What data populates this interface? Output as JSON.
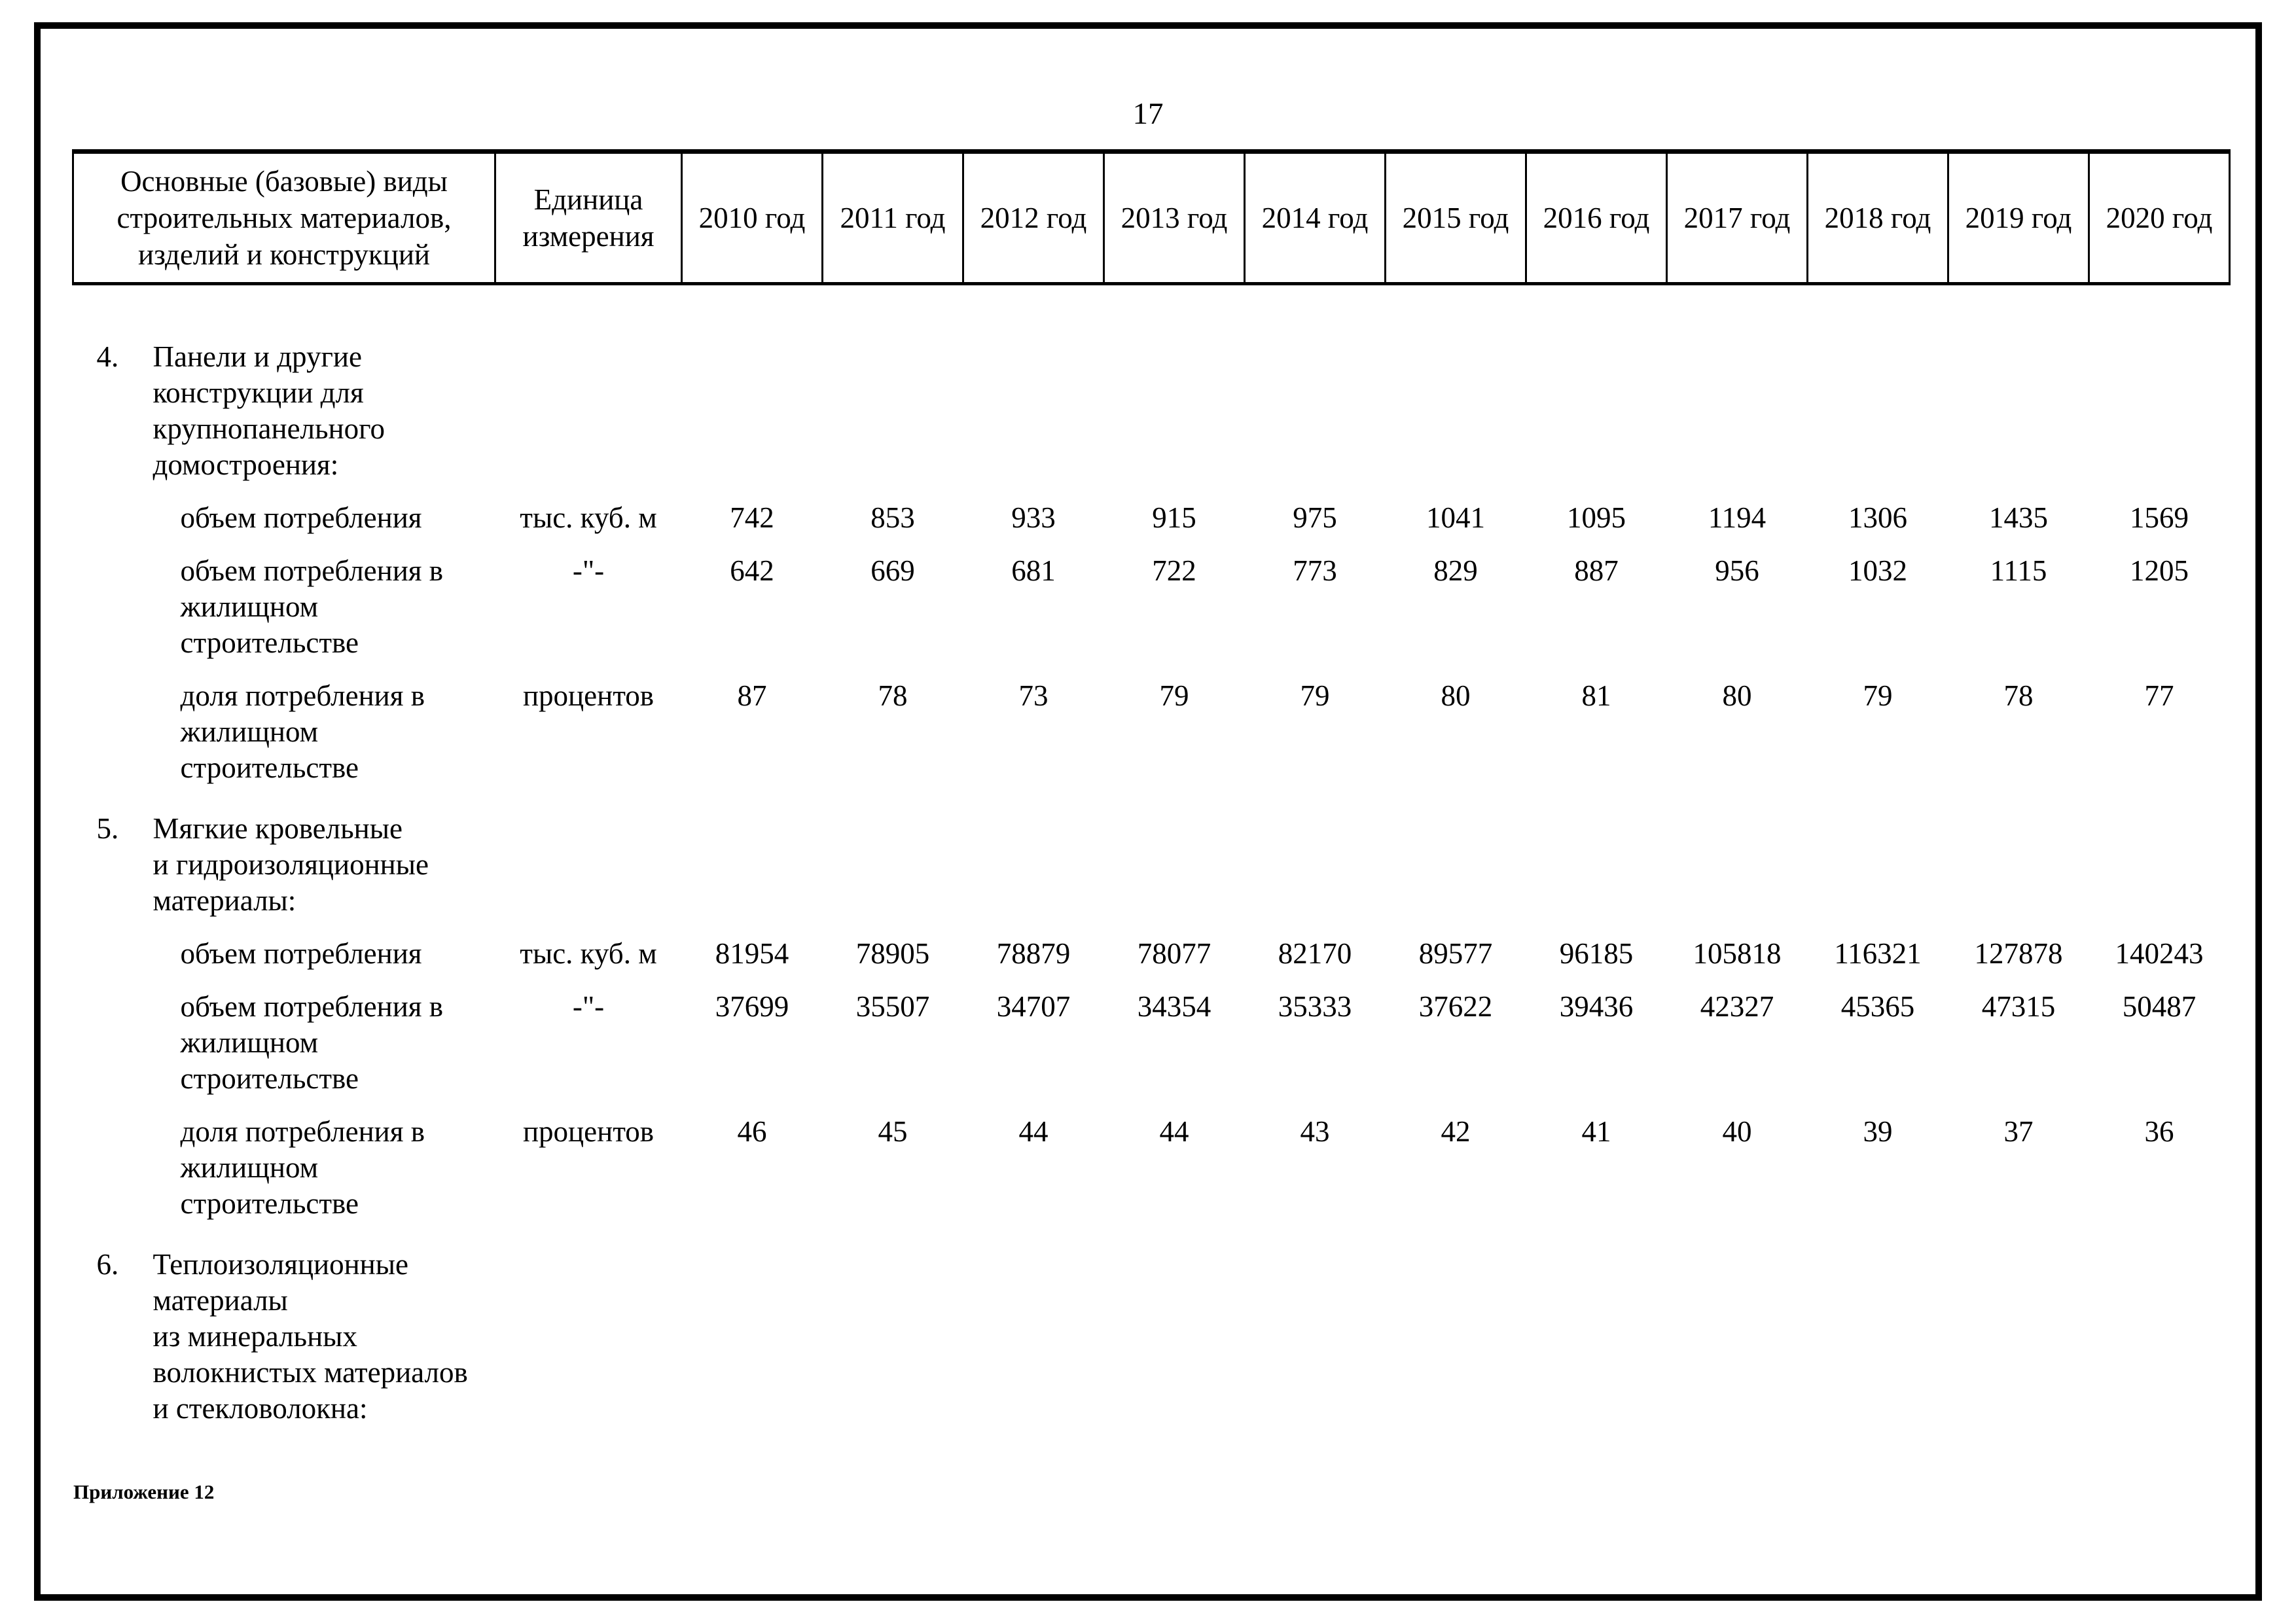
{
  "page": {
    "number": "17"
  },
  "table": {
    "header": {
      "material": "Основные (базовые) виды\nстроительных материалов,\nизделий и конструкций",
      "unit": "Единица\nизмерения"
    },
    "years": [
      "2010 год",
      "2011 год",
      "2012 год",
      "2013 год",
      "2014 год",
      "2015 год",
      "2016 год",
      "2017 год",
      "2018 год",
      "2019 год",
      "2020 год"
    ],
    "rows": [
      {
        "type": "group",
        "num": "4.",
        "label": "Панели и другие\nконструкции для\nкрупнопанельного\nдомостроения:"
      },
      {
        "type": "data",
        "label": "объем потребления",
        "unit": "тыс. куб. м",
        "values": [
          742,
          853,
          933,
          915,
          975,
          1041,
          1095,
          1194,
          1306,
          1435,
          1569
        ]
      },
      {
        "type": "data",
        "label": "объем потребления в\nжилищном\nстроительстве",
        "unit": "-\"-",
        "values": [
          642,
          669,
          681,
          722,
          773,
          829,
          887,
          956,
          1032,
          1115,
          1205
        ]
      },
      {
        "type": "data",
        "label": "доля потребления в\nжилищном\nстроительстве",
        "unit": "процентов",
        "values": [
          87,
          78,
          73,
          79,
          79,
          80,
          81,
          80,
          79,
          78,
          77
        ]
      },
      {
        "type": "group",
        "num": "5.",
        "label": "Мягкие кровельные\nи гидроизоляционные\nматериалы:"
      },
      {
        "type": "data",
        "label": "объем потребления",
        "unit": "тыс. куб. м",
        "values": [
          81954,
          78905,
          78879,
          78077,
          82170,
          89577,
          96185,
          105818,
          116321,
          127878,
          140243
        ]
      },
      {
        "type": "data",
        "label": "объем потребления в\nжилищном\nстроительстве",
        "unit": "-\"-",
        "values": [
          37699,
          35507,
          34707,
          34354,
          35333,
          37622,
          39436,
          42327,
          45365,
          47315,
          50487
        ]
      },
      {
        "type": "data",
        "label": "доля потребления в\nжилищном\nстроительстве",
        "unit": "процентов",
        "values": [
          46,
          45,
          44,
          44,
          43,
          42,
          41,
          40,
          39,
          37,
          36
        ]
      },
      {
        "type": "group",
        "num": "6.",
        "label": "Теплоизоляционные\nматериалы\nиз минеральных\nволокнистых материалов\nи стекловолокна:"
      }
    ]
  },
  "footer": {
    "note": "Приложение 12"
  }
}
